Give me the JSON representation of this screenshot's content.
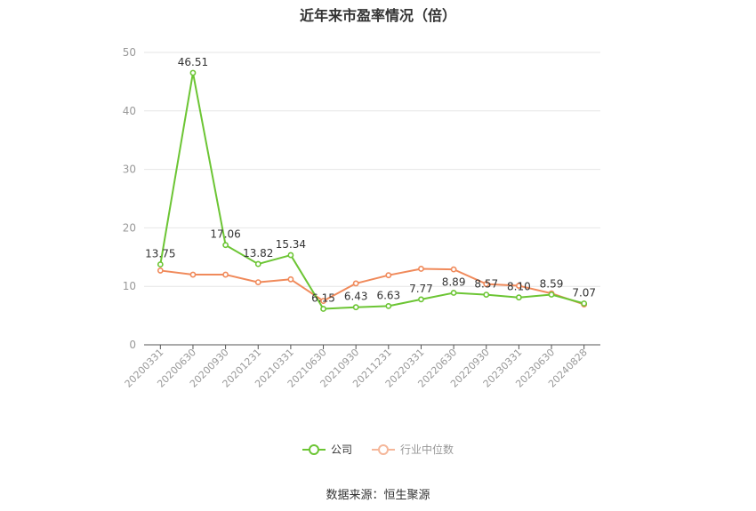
{
  "title": "近年来市盈率情况（倍）",
  "source": "数据来源：恒生聚源",
  "colors": {
    "company": "#6cc534",
    "industry": "#f08a5b",
    "axis": "#555555",
    "grid": "#e6e6e6",
    "tick": "#999999"
  },
  "chart_data": {
    "type": "line",
    "title": "近年来市盈率情况（倍）",
    "categories": [
      "20200331",
      "20200630",
      "20200930",
      "20201231",
      "20210331",
      "20210630",
      "20210930",
      "20211231",
      "20220331",
      "20220630",
      "20220930",
      "20230331",
      "20230630",
      "20240828"
    ],
    "ylim": [
      0,
      50
    ],
    "yticks": [
      0,
      10,
      20,
      30,
      40,
      50
    ],
    "grid": true,
    "legend_position": "bottom-center",
    "series": [
      {
        "name": "公司",
        "values": [
          13.75,
          46.51,
          17.06,
          13.82,
          15.34,
          6.15,
          6.43,
          6.63,
          7.77,
          8.89,
          8.57,
          8.1,
          8.59,
          7.07
        ],
        "labels": [
          "13.75",
          "46.51",
          "17.06",
          "13.82",
          "15.34",
          "6.15",
          "6.43",
          "6.63",
          "7.77",
          "8.89",
          "8.57",
          "8.10",
          "8.59",
          "7.07"
        ]
      },
      {
        "name": "行业中位数",
        "values": [
          12.7,
          12.0,
          12.0,
          10.7,
          11.2,
          7.5,
          10.5,
          11.9,
          13.0,
          12.9,
          10.4,
          10.1,
          8.8,
          6.9
        ]
      }
    ]
  }
}
